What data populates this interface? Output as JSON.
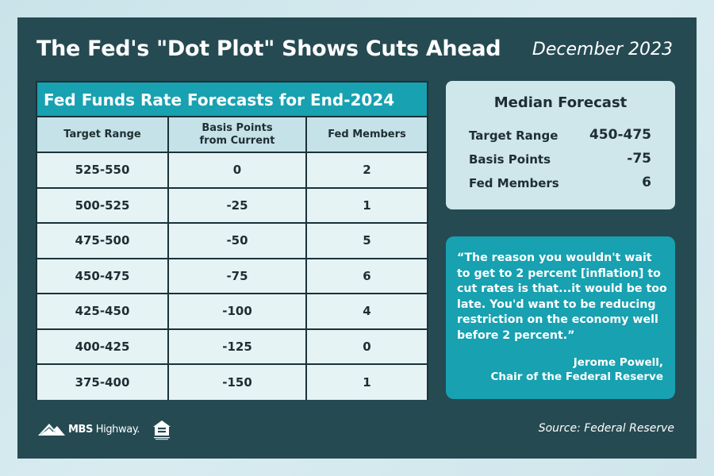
{
  "header": {
    "title": "The Fed's \"Dot Plot\" Shows Cuts Ahead",
    "date": "December 2023"
  },
  "table": {
    "title": "Fed Funds Rate Forecasts for End-2024",
    "headers": [
      "Target Range",
      "Basis Points from Current",
      "Fed Members"
    ],
    "header_lines": {
      "col2_line1": "Basis Points",
      "col2_line2": "from Current"
    },
    "rows": [
      [
        "525-550",
        "0",
        "2"
      ],
      [
        "500-525",
        "-25",
        "1"
      ],
      [
        "475-500",
        "-50",
        "5"
      ],
      [
        "450-475",
        "-75",
        "6"
      ],
      [
        "425-450",
        "-100",
        "4"
      ],
      [
        "400-425",
        "-125",
        "0"
      ],
      [
        "375-400",
        "-150",
        "1"
      ]
    ]
  },
  "median": {
    "title": "Median Forecast",
    "target_range_label": "Target Range",
    "target_range_value": "450-475",
    "basis_points_label": "Basis Points",
    "basis_points_value": "-75",
    "fed_members_label": "Fed Members",
    "fed_members_value": "6"
  },
  "quote": {
    "text": "“The reason you wouldn't wait to get to 2 percent [inflation] to cut rates is that...it would be too late. You'd want to be reducing restriction on the economy well before 2 percent.”",
    "author": "Jerome Powell,",
    "author_title": "Chair of the Federal Reserve"
  },
  "footer": {
    "logo_bold": "MBS",
    "logo_light": " Highway.",
    "logo_icon": "mountain-icon",
    "eho_icon": "equal-housing-opportunity-icon",
    "source": "Source: Federal Reserve"
  },
  "colors": {
    "background": "#254a52",
    "accent": "#17a1b1",
    "panel": "#cfe6eb",
    "table_header": "#c4e2e8",
    "table_cell": "#e6f3f5"
  }
}
